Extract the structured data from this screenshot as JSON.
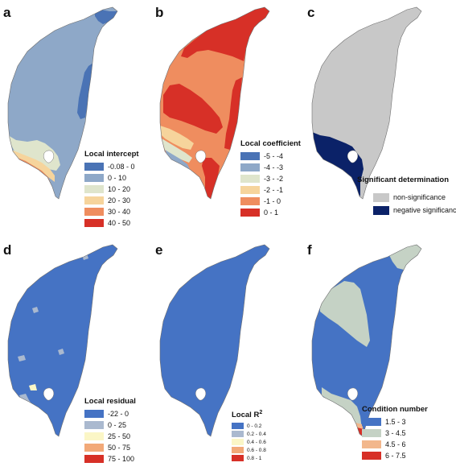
{
  "panels": [
    {
      "id": "a",
      "label": "a",
      "legend_title": "Local intercept",
      "classes": [
        {
          "label": "-0.08 - 0",
          "color": "#4a73b5"
        },
        {
          "label": "0 - 10",
          "color": "#8ea8c8"
        },
        {
          "label": "10 - 20",
          "color": "#dfe5cc"
        },
        {
          "label": "20 - 30",
          "color": "#f6d49c"
        },
        {
          "label": "30 - 40",
          "color": "#ef8d5f"
        },
        {
          "label": "40 - 50",
          "color": "#d73027"
        }
      ],
      "base_class": 1,
      "regions": [
        {
          "shape": "far-north",
          "class": 0
        },
        {
          "shape": "east-strip",
          "class": 0
        },
        {
          "shape": "sw-band-1",
          "class": 2
        },
        {
          "shape": "sw-band-2",
          "class": 3
        },
        {
          "shape": "sw-band-3",
          "class": 4
        },
        {
          "shape": "sw-tip",
          "class": 5
        }
      ]
    },
    {
      "id": "b",
      "label": "b",
      "legend_title": "Local coefficient",
      "classes": [
        {
          "label": "-5 - -4",
          "color": "#4a73b5"
        },
        {
          "label": "-4 - -3",
          "color": "#8ea8c8"
        },
        {
          "label": "-3 - -2",
          "color": "#dfe5cc"
        },
        {
          "label": "-2 - -1",
          "color": "#f6d49c"
        },
        {
          "label": "-1 - 0",
          "color": "#ef8d5f"
        },
        {
          "label": "0 - 1",
          "color": "#d73027"
        }
      ],
      "base_class": 4,
      "regions": [
        {
          "shape": "north",
          "class": 5
        },
        {
          "shape": "central-west",
          "class": 5
        },
        {
          "shape": "east-mid",
          "class": 5
        },
        {
          "shape": "south-central",
          "class": 5
        },
        {
          "shape": "sw-band-1",
          "class": 3
        },
        {
          "shape": "sw-band-2",
          "class": 2
        },
        {
          "shape": "sw-band-3",
          "class": 1
        },
        {
          "shape": "sw-tip",
          "class": 0
        }
      ]
    },
    {
      "id": "c",
      "label": "c",
      "legend_title": "Significant determination",
      "classes": [
        {
          "label": "non-significance",
          "color": "#c8c8c8"
        },
        {
          "label": "negative significance",
          "color": "#0b2268"
        }
      ],
      "base_class": 0,
      "regions": [
        {
          "shape": "southwest",
          "class": 1
        }
      ]
    },
    {
      "id": "d",
      "label": "d",
      "legend_title": "Local residual",
      "classes": [
        {
          "label": "-22 - 0",
          "color": "#4573c4"
        },
        {
          "label": "0 - 25",
          "color": "#aab9cf"
        },
        {
          "label": "25 - 50",
          "color": "#fbf6c6"
        },
        {
          "label": "50 - 75",
          "color": "#f2a978"
        },
        {
          "label": "75 - 100",
          "color": "#d73027"
        }
      ],
      "base_class": 0,
      "regions": [
        {
          "shape": "patch-1",
          "class": 1
        },
        {
          "shape": "patch-2",
          "class": 1
        },
        {
          "shape": "patch-3",
          "class": 1
        },
        {
          "shape": "patch-4",
          "class": 1
        },
        {
          "shape": "patch-5",
          "class": 1
        },
        {
          "shape": "patch-6",
          "class": 2
        },
        {
          "shape": "patch-7",
          "class": 3
        },
        {
          "shape": "patch-8",
          "class": 4
        }
      ]
    },
    {
      "id": "e",
      "label": "e",
      "legend_title": "Local R",
      "legend_sup": "2",
      "classes": [
        {
          "label": "0 - 0.2",
          "color": "#4573c4"
        },
        {
          "label": "0.2 - 0.4",
          "color": "#aab9cf"
        },
        {
          "label": "0.4 - 0.6",
          "color": "#fbf6c6"
        },
        {
          "label": "0.6 - 0.8",
          "color": "#f2a978"
        },
        {
          "label": "0.8 - 1",
          "color": "#d73027"
        }
      ],
      "base_class": 0,
      "regions": [
        {
          "shape": "sw-small-1",
          "class": 1
        },
        {
          "shape": "sw-small-2",
          "class": 2
        }
      ]
    },
    {
      "id": "f",
      "label": "f",
      "legend_title": "Condition number",
      "classes": [
        {
          "label": "1.5 - 3",
          "color": "#4573c4"
        },
        {
          "label": "3 - 4.5",
          "color": "#c5d2c5"
        },
        {
          "label": "4.5 - 6",
          "color": "#f2b78c"
        },
        {
          "label": "6 - 7.5",
          "color": "#d73027"
        }
      ],
      "base_class": 0,
      "regions": [
        {
          "shape": "north-tip",
          "class": 1
        },
        {
          "shape": "nw-block",
          "class": 1
        },
        {
          "shape": "south-band",
          "class": 1
        },
        {
          "shape": "south-tip-a",
          "class": 2
        },
        {
          "shape": "south-tip-b",
          "class": 3
        }
      ]
    }
  ]
}
